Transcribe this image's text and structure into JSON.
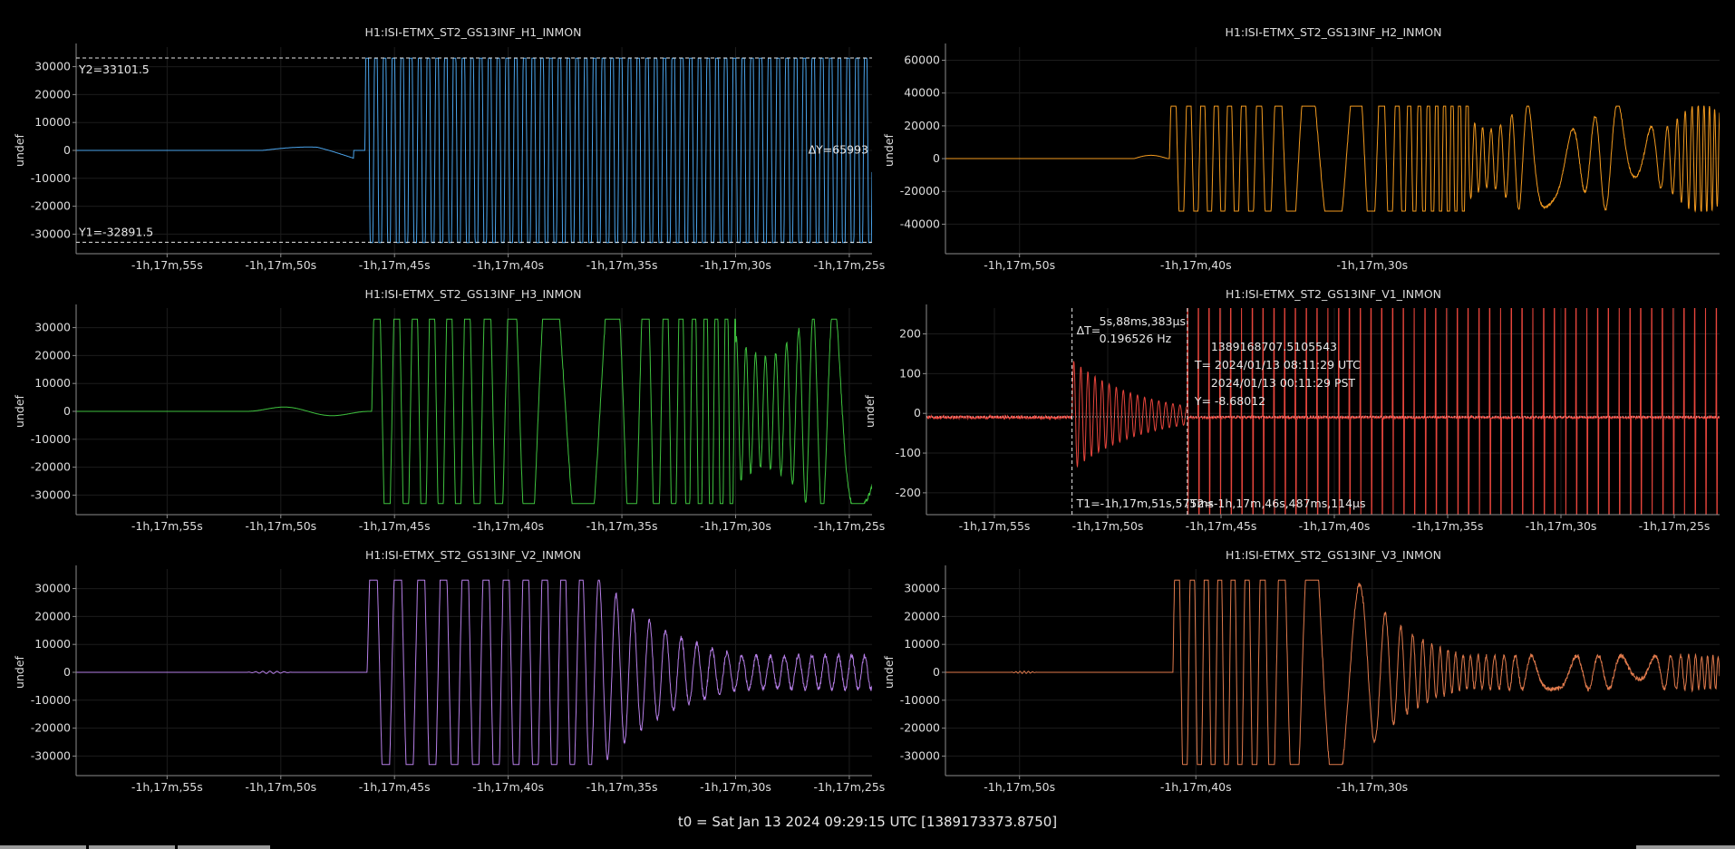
{
  "footer": {
    "t0": "t0 = Sat Jan 13 2024 09:29:15 UTC [1389173373.8750]"
  },
  "chart_data": [
    {
      "id": "h1",
      "type": "line",
      "title": "H1:ISI-ETMX_ST2_GS13INF_H1_INMON",
      "ylabel": "undef",
      "xlabel": "",
      "color": "#4aa3ea",
      "xlim": [
        -1079,
        -1044
      ],
      "ylim": [
        -37000,
        37000
      ],
      "yticks": [
        30000,
        20000,
        10000,
        0,
        -10000,
        -20000,
        -30000
      ],
      "xtick_labels": [
        {
          "x": -1075,
          "label": "-1h,17m,55s"
        },
        {
          "x": -1070,
          "label": "-1h,17m,50s"
        },
        {
          "x": -1065,
          "label": "-1h,17m,45s"
        },
        {
          "x": -1060,
          "label": "-1h,17m,40s"
        },
        {
          "x": -1055,
          "label": "-1h,17m,35s"
        },
        {
          "x": -1050,
          "label": "-1h,17m,30s"
        },
        {
          "x": -1045,
          "label": "-1h,17m,25s"
        }
      ],
      "signal": {
        "quiet_until": -1066.3,
        "kind": "square",
        "wiggle": [
          -1070.8,
          -1066.8
        ]
      },
      "cursors": {
        "y1": -32891.5,
        "y2": 33101.5,
        "y1_label": "Y1=-32891.5",
        "y2_label": "Y2=33101.5",
        "dy_label": "ΔY=65993"
      }
    },
    {
      "id": "h2",
      "type": "line",
      "title": "H1:ISI-ETMX_ST2_GS13INF_H2_INMON",
      "ylabel": "undef",
      "xlabel": "",
      "color": "#f29a1f",
      "xlim": [
        -1074.2,
        -1030.3
      ],
      "ylim": [
        -58000,
        68000
      ],
      "yticks": [
        60000,
        40000,
        20000,
        0,
        -20000,
        -40000
      ],
      "xtick_labels": [
        {
          "x": -1070,
          "label": "-1h,17m,50s"
        },
        {
          "x": -1060,
          "label": "-1h,17m,40s"
        },
        {
          "x": -1050,
          "label": "-1h,17m,30s"
        }
      ],
      "signal": {
        "quiet_until": -1061.5,
        "kind": "square-decay",
        "wiggle": [
          -1063.5,
          -1061.6
        ]
      }
    },
    {
      "id": "h3",
      "type": "line",
      "title": "H1:ISI-ETMX_ST2_GS13INF_H3_INMON",
      "ylabel": "undef",
      "xlabel": "",
      "color": "#3ec13e",
      "xlim": [
        -1079,
        -1044
      ],
      "ylim": [
        -37000,
        37000
      ],
      "yticks": [
        30000,
        20000,
        10000,
        0,
        -10000,
        -20000,
        -30000
      ],
      "xtick_labels": [
        {
          "x": -1075,
          "label": "-1h,17m,55s"
        },
        {
          "x": -1070,
          "label": "-1h,17m,50s"
        },
        {
          "x": -1065,
          "label": "-1h,17m,45s"
        },
        {
          "x": -1060,
          "label": "-1h,17m,40s"
        },
        {
          "x": -1055,
          "label": "-1h,17m,35s"
        },
        {
          "x": -1050,
          "label": "-1h,17m,30s"
        },
        {
          "x": -1045,
          "label": "-1h,17m,25s"
        }
      ],
      "signal": {
        "quiet_until": -1066.0,
        "kind": "square-decay",
        "wiggle": [
          -1071.5,
          -1066.1
        ]
      }
    },
    {
      "id": "v1",
      "type": "line",
      "title": "H1:ISI-ETMX_ST2_GS13INF_V1_INMON",
      "ylabel": "undef",
      "xlabel": "",
      "color": "#e8453c",
      "xlim": [
        -1078,
        -1043
      ],
      "ylim": [
        -255,
        265
      ],
      "yticks": [
        200,
        100,
        0,
        -100,
        -200
      ],
      "xtick_labels": [
        {
          "x": -1075,
          "label": "-1h,17m,55s"
        },
        {
          "x": -1070,
          "label": "-1h,17m,50s"
        },
        {
          "x": -1065,
          "label": "-1h,17m,45s"
        },
        {
          "x": -1060,
          "label": "-1h,17m,40s"
        },
        {
          "x": -1055,
          "label": "-1h,17m,35s"
        },
        {
          "x": -1050,
          "label": "-1h,17m,30s"
        },
        {
          "x": -1045,
          "label": "-1h,17m,25s"
        }
      ],
      "signal": {
        "quiet_until": -1071.575,
        "kind": "spikes",
        "saturate_at": -1066.487
      },
      "cursors": {
        "t1": -1071.575,
        "t2": -1066.487,
        "y": -8.68012,
        "t1_label": "T1=-1h,17m,51s,575ms",
        "t2_label": "T2=-1h,17m,46s,487ms,114μs",
        "dt_prefix": "ΔT=",
        "dt_label": "5s,88ms,383μs",
        "freq_label": "0.196526 Hz",
        "gps": "1389168707.5105543",
        "utc": "T= 2024/01/13 08:11:29 UTC",
        "pst": "2024/01/13 00:11:29 PST",
        "y_label": "Y= -8.68012"
      }
    },
    {
      "id": "v2",
      "type": "line",
      "title": "H1:ISI-ETMX_ST2_GS13INF_V2_INMON",
      "ylabel": "undef",
      "xlabel": "",
      "color": "#b57ee6",
      "xlim": [
        -1079,
        -1044
      ],
      "ylim": [
        -37000,
        37000
      ],
      "yticks": [
        30000,
        20000,
        10000,
        0,
        -10000,
        -20000,
        -30000
      ],
      "xtick_labels": [
        {
          "x": -1075,
          "label": "-1h,17m,55s"
        },
        {
          "x": -1070,
          "label": "-1h,17m,50s"
        },
        {
          "x": -1065,
          "label": "-1h,17m,45s"
        },
        {
          "x": -1060,
          "label": "-1h,17m,40s"
        },
        {
          "x": -1055,
          "label": "-1h,17m,35s"
        },
        {
          "x": -1050,
          "label": "-1h,17m,30s"
        },
        {
          "x": -1045,
          "label": "-1h,17m,25s"
        }
      ],
      "signal": {
        "quiet_until": -1066.2,
        "kind": "square-decay",
        "clip_until": -1058.0,
        "wiggle": [
          -1071.5,
          -1069.5
        ]
      }
    },
    {
      "id": "v3",
      "type": "line",
      "title": "H1:ISI-ETMX_ST2_GS13INF_V3_INMON",
      "ylabel": "undef",
      "xlabel": "",
      "color": "#e07a4c",
      "xlim": [
        -1074.2,
        -1030.3
      ],
      "ylim": [
        -37000,
        37000
      ],
      "yticks": [
        30000,
        20000,
        10000,
        0,
        -10000,
        -20000,
        -30000
      ],
      "xtick_labels": [
        {
          "x": -1070,
          "label": "-1h,17m,50s"
        },
        {
          "x": -1060,
          "label": "-1h,17m,40s"
        },
        {
          "x": -1050,
          "label": "-1h,17m,30s"
        }
      ],
      "signal": {
        "quiet_until": -1061.3,
        "kind": "square-decay",
        "clip_until": -1053.0,
        "wiggle": [
          -1070.5,
          -1069.0
        ]
      }
    }
  ]
}
